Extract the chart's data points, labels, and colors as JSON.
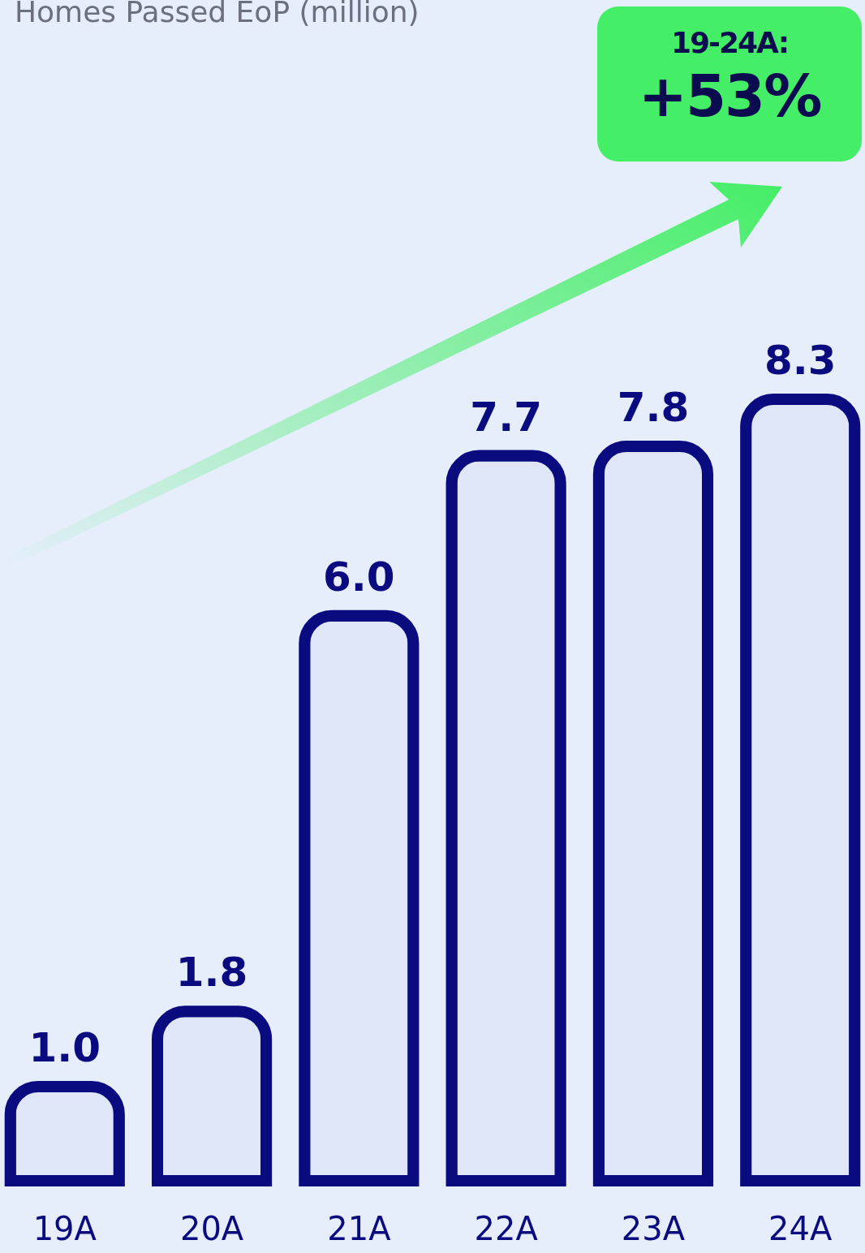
{
  "chart_data": {
    "type": "bar",
    "title": "Homes Passed EoP (million)",
    "categories": [
      "19A",
      "20A",
      "21A",
      "22A",
      "23A",
      "24A"
    ],
    "values": [
      1.0,
      1.8,
      6.0,
      7.7,
      7.8,
      8.3
    ],
    "value_labels": [
      "1.0",
      "1.8",
      "6.0",
      "7.7",
      "7.8",
      "8.3"
    ],
    "color": "#0b0b80",
    "annotations": [
      "19-24A:",
      "+53%"
    ]
  }
}
